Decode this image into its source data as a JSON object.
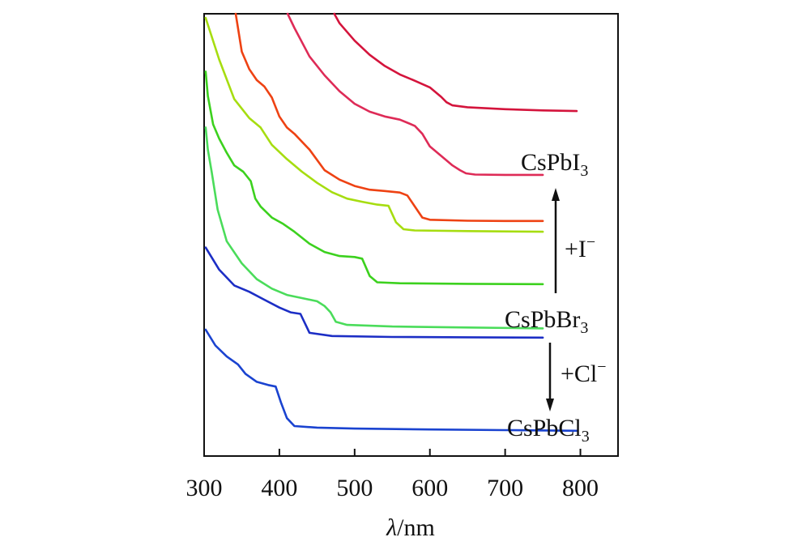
{
  "chart_data": {
    "type": "line",
    "xlabel": "/nm",
    "xlabel_symbol": "λ",
    "xlim": [
      300,
      850
    ],
    "x_ticks": [
      300,
      400,
      500,
      600,
      700,
      800
    ],
    "y_axis": "unlabeled, curves vertically offset",
    "grid": false,
    "series": [
      {
        "label_main": "CsPbI",
        "label_sub": "3",
        "color": "#d4143c",
        "points": [
          [
            473,
            0.0
          ],
          [
            480,
            0.03
          ],
          [
            500,
            0.085
          ],
          [
            520,
            0.13
          ],
          [
            540,
            0.165
          ],
          [
            560,
            0.192
          ],
          [
            580,
            0.212
          ],
          [
            600,
            0.233
          ],
          [
            615,
            0.263
          ],
          [
            622,
            0.28
          ],
          [
            630,
            0.29
          ],
          [
            650,
            0.296
          ],
          [
            700,
            0.302
          ],
          [
            750,
            0.306
          ],
          [
            795,
            0.308
          ]
        ]
      },
      {
        "color": "#de2b57",
        "points": [
          [
            411,
            0.0
          ],
          [
            420,
            0.045
          ],
          [
            440,
            0.135
          ],
          [
            460,
            0.195
          ],
          [
            480,
            0.245
          ],
          [
            500,
            0.285
          ],
          [
            520,
            0.31
          ],
          [
            540,
            0.325
          ],
          [
            560,
            0.335
          ],
          [
            570,
            0.345
          ],
          [
            580,
            0.355
          ],
          [
            590,
            0.38
          ],
          [
            600,
            0.42
          ],
          [
            620,
            0.46
          ],
          [
            630,
            0.48
          ],
          [
            640,
            0.495
          ],
          [
            648,
            0.505
          ],
          [
            660,
            0.509
          ],
          [
            700,
            0.51
          ],
          [
            750,
            0.51
          ]
        ]
      },
      {
        "color": "#ee4213",
        "points": [
          [
            342,
            0.0
          ],
          [
            350,
            0.12
          ],
          [
            360,
            0.175
          ],
          [
            370,
            0.21
          ],
          [
            380,
            0.23
          ],
          [
            390,
            0.265
          ],
          [
            400,
            0.325
          ],
          [
            410,
            0.36
          ],
          [
            420,
            0.38
          ],
          [
            440,
            0.43
          ],
          [
            460,
            0.495
          ],
          [
            480,
            0.525
          ],
          [
            500,
            0.545
          ],
          [
            520,
            0.557
          ],
          [
            540,
            0.561
          ],
          [
            560,
            0.566
          ],
          [
            570,
            0.575
          ],
          [
            580,
            0.61
          ],
          [
            590,
            0.645
          ],
          [
            600,
            0.652
          ],
          [
            650,
            0.655
          ],
          [
            700,
            0.656
          ],
          [
            750,
            0.656
          ]
        ]
      },
      {
        "color": "#a6dd10",
        "points": [
          [
            302,
            0.013
          ],
          [
            320,
            0.145
          ],
          [
            340,
            0.27
          ],
          [
            360,
            0.33
          ],
          [
            375,
            0.36
          ],
          [
            390,
            0.415
          ],
          [
            410,
            0.46
          ],
          [
            430,
            0.5
          ],
          [
            450,
            0.535
          ],
          [
            470,
            0.565
          ],
          [
            490,
            0.585
          ],
          [
            510,
            0.595
          ],
          [
            530,
            0.604
          ],
          [
            545,
            0.608
          ],
          [
            555,
            0.66
          ],
          [
            565,
            0.682
          ],
          [
            580,
            0.686
          ],
          [
            650,
            0.688
          ],
          [
            750,
            0.69
          ]
        ]
      },
      {
        "color": "#3cd11e",
        "points": [
          [
            302,
            0.183
          ],
          [
            305,
            0.26
          ],
          [
            312,
            0.35
          ],
          [
            320,
            0.395
          ],
          [
            330,
            0.44
          ],
          [
            340,
            0.48
          ],
          [
            352,
            0.5
          ],
          [
            362,
            0.53
          ],
          [
            368,
            0.585
          ],
          [
            375,
            0.61
          ],
          [
            390,
            0.645
          ],
          [
            405,
            0.665
          ],
          [
            420,
            0.69
          ],
          [
            440,
            0.728
          ],
          [
            460,
            0.754
          ],
          [
            480,
            0.767
          ],
          [
            500,
            0.77
          ],
          [
            510,
            0.775
          ],
          [
            520,
            0.83
          ],
          [
            530,
            0.85
          ],
          [
            560,
            0.853
          ],
          [
            650,
            0.855
          ],
          [
            750,
            0.856
          ]
        ]
      },
      {
        "color": "#4adc5a",
        "points": [
          [
            302,
            0.36
          ],
          [
            305,
            0.43
          ],
          [
            310,
            0.5
          ],
          [
            318,
            0.62
          ],
          [
            330,
            0.72
          ],
          [
            350,
            0.79
          ],
          [
            370,
            0.84
          ],
          [
            390,
            0.87
          ],
          [
            410,
            0.89
          ],
          [
            430,
            0.9
          ],
          [
            450,
            0.91
          ],
          [
            460,
            0.925
          ],
          [
            468,
            0.945
          ],
          [
            475,
            0.975
          ],
          [
            490,
            0.985
          ],
          [
            550,
            0.99
          ],
          [
            650,
            0.993
          ],
          [
            750,
            0.996
          ]
        ]
      },
      {
        "color": "#1c2ec5",
        "points": [
          [
            302,
            0.74
          ],
          [
            320,
            0.81
          ],
          [
            340,
            0.86
          ],
          [
            360,
            0.88
          ],
          [
            380,
            0.905
          ],
          [
            400,
            0.93
          ],
          [
            415,
            0.945
          ],
          [
            428,
            0.95
          ],
          [
            435,
            0.985
          ],
          [
            440,
            1.01
          ],
          [
            470,
            1.02
          ],
          [
            550,
            1.023
          ],
          [
            650,
            1.024
          ],
          [
            750,
            1.025
          ]
        ]
      },
      {
        "label_main": "CsPbCl",
        "label_sub": "3",
        "color": "#1a43d0",
        "points": [
          [
            302,
            1.0
          ],
          [
            315,
            1.05
          ],
          [
            330,
            1.085
          ],
          [
            345,
            1.11
          ],
          [
            355,
            1.14
          ],
          [
            370,
            1.165
          ],
          [
            385,
            1.175
          ],
          [
            395,
            1.18
          ],
          [
            402,
            1.23
          ],
          [
            410,
            1.28
          ],
          [
            420,
            1.305
          ],
          [
            450,
            1.31
          ],
          [
            500,
            1.313
          ],
          [
            600,
            1.316
          ],
          [
            700,
            1.318
          ],
          [
            795,
            1.32
          ]
        ]
      }
    ],
    "annotations": [
      {
        "text_main": "CsPbBr",
        "text_sub": "3"
      },
      {
        "text_main": "+I",
        "text_sup": "−"
      },
      {
        "text_main": "+Cl",
        "text_sup": "−"
      }
    ]
  }
}
